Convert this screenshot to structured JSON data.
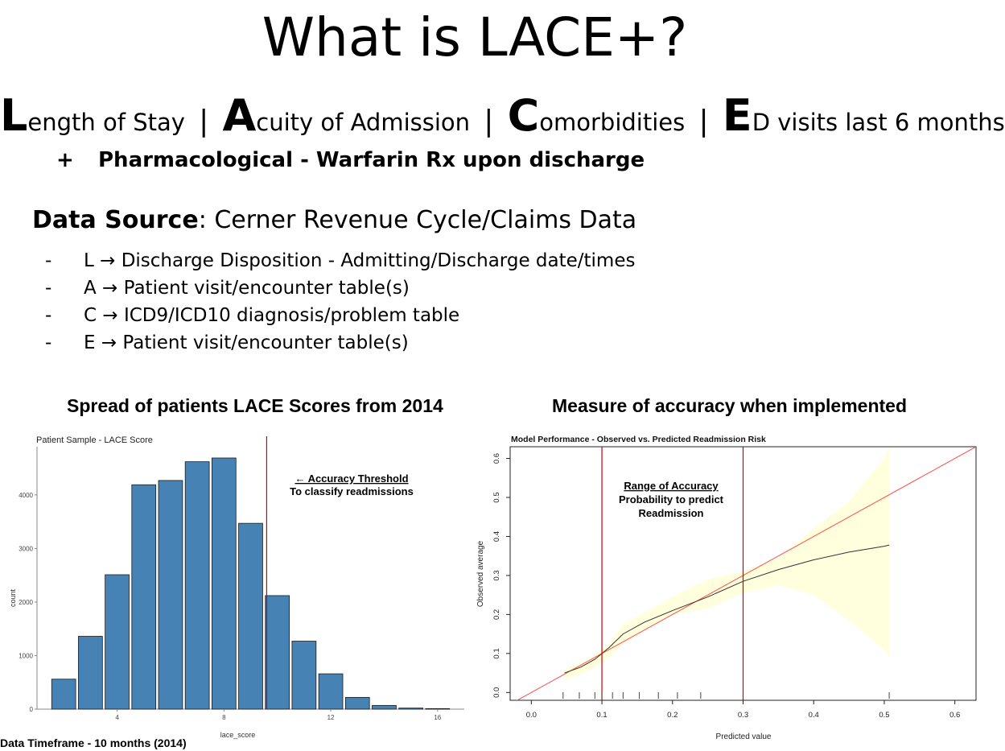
{
  "slide": {
    "title": "What is LACE+?",
    "lace": [
      {
        "letter": "L",
        "rest": "ength of Stay"
      },
      {
        "letter": "A",
        "rest": "cuity of Admission"
      },
      {
        "letter": "C",
        "rest": "omorbidities"
      },
      {
        "letter": "E",
        "rest": "D visits last 6 months"
      }
    ],
    "separator": "|",
    "plus_symbol": "+",
    "plus_text": "Pharmacological - Warfarin Rx upon discharge",
    "data_source_label": "Data Source",
    "data_source_value": ": Cerner Revenue Cycle/Claims Data",
    "bullet_dash": "-",
    "bullets": [
      "L → Discharge Disposition - Admitting/Discharge date/times",
      "A → Patient visit/encounter table(s)",
      "C → ICD9/ICD10 diagnosis/problem table",
      "E → Patient visit/encounter table(s)"
    ],
    "left_section_title": "Spread of patients LACE Scores from 2014",
    "right_section_title": "Measure of accuracy when implemented",
    "timeframe": "Data Timeframe - 10 months (2014)"
  },
  "chart_data": [
    {
      "type": "bar",
      "title": "Patient Sample - LACE Score",
      "xlabel": "lace_score",
      "ylabel": "count",
      "x": [
        2,
        3,
        4,
        5,
        6,
        7,
        8,
        9,
        10,
        11,
        12,
        13,
        14,
        15,
        16
      ],
      "values": [
        560,
        1360,
        2510,
        4190,
        4270,
        4620,
        4690,
        3470,
        2120,
        1270,
        660,
        220,
        70,
        20,
        10
      ],
      "xticks": [
        4,
        8,
        12,
        16
      ],
      "yticks": [
        0,
        1000,
        2000,
        3000,
        4000
      ],
      "ylim": [
        0,
        4900
      ],
      "xlim": [
        1,
        17
      ],
      "bar_color": "#4682b4",
      "threshold_x": 9.6,
      "threshold_color": "#cc0000",
      "annotation": {
        "title": "← Accuracy Threshold",
        "subtitle": "To classify readmissions"
      },
      "grid": false
    },
    {
      "type": "line",
      "title": "Model Performance - Observed vs. Predicted Readmission Risk",
      "xlabel": "Predicted value",
      "ylabel": "Observed average",
      "xlim": [
        -0.03,
        0.63
      ],
      "ylim": [
        -0.02,
        0.63
      ],
      "xticks": [
        "0.0",
        "0.1",
        "0.2",
        "0.3",
        "0.4",
        "0.5",
        "0.6"
      ],
      "yticks": [
        "0.0",
        "0.1",
        "0.2",
        "0.3",
        "0.4",
        "0.5",
        "0.6"
      ],
      "series": [
        {
          "x": [
            0.047,
            0.07,
            0.09,
            0.11,
            0.13,
            0.16,
            0.2,
            0.25,
            0.3,
            0.35,
            0.4,
            0.45,
            0.5,
            0.507
          ],
          "y": [
            0.05,
            0.065,
            0.085,
            0.115,
            0.15,
            0.18,
            0.21,
            0.245,
            0.285,
            0.315,
            0.34,
            0.36,
            0.375,
            0.378
          ],
          "color": "#333333"
        },
        {
          "x": [
            -0.03,
            0.63
          ],
          "y": [
            -0.03,
            0.63
          ],
          "color": "#ff4d4d"
        }
      ],
      "confidence_band": {
        "x": [
          0.047,
          0.08,
          0.11,
          0.13,
          0.16,
          0.2,
          0.25,
          0.3,
          0.35,
          0.4,
          0.45,
          0.5,
          0.507
        ],
        "upper": [
          0.06,
          0.085,
          0.125,
          0.175,
          0.205,
          0.245,
          0.29,
          0.31,
          0.345,
          0.42,
          0.49,
          0.6,
          0.63
        ],
        "lower": [
          0.03,
          0.055,
          0.09,
          0.125,
          0.16,
          0.2,
          0.215,
          0.255,
          0.275,
          0.25,
          0.185,
          0.11,
          0.09
        ],
        "color": "#ffffdd"
      },
      "vlines": [
        0.1,
        0.3
      ],
      "vline_color": "#cc0000",
      "rug": [
        0.045,
        0.068,
        0.09,
        0.1,
        0.115,
        0.13,
        0.153,
        0.18,
        0.207,
        0.24,
        0.507
      ],
      "annotation": {
        "title": "Range of Accuracy",
        "line1": "Probability to predict",
        "line2": "Readmission"
      },
      "grid": false
    }
  ]
}
